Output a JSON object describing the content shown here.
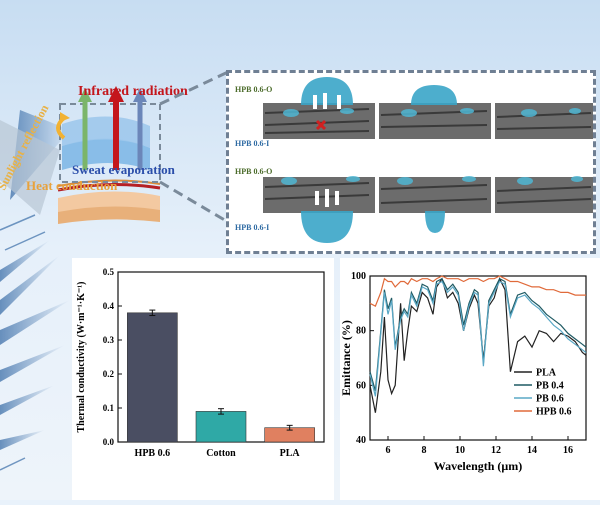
{
  "schematic": {
    "solar_reflection": "Sunlight reflection",
    "infrared_radiation": "Infrared radiation",
    "sweat_evaporation": "Sweat evaporation",
    "heat_conduction": "Heat conduction"
  },
  "micro_panel": {
    "labels": {
      "top_outer": "HPB 0.6-O",
      "top_inner": "HPB 0.6-I",
      "bottom_outer": "HPB 0.6-O",
      "bottom_inner": "HPB 0.6-I"
    }
  },
  "colors": {
    "infrared": "#c4161c",
    "sweat": "#2b4eaa",
    "sun": "#f2b233",
    "heat": "#e8a23c",
    "bar_hpb": "#4a4e62",
    "bar_cotton": "#2fa9a6",
    "bar_pla": "#e08060",
    "pla_line": "#222222",
    "pb04_line": "#1f5a63",
    "pb06_line": "#5aa8c6",
    "hpb06_line": "#e06a3a"
  },
  "chart_data": [
    {
      "type": "bar",
      "title": "",
      "xlabel": "",
      "ylabel": "Thermal conductivity (W·m⁻¹·K⁻¹)",
      "categories": [
        "HPB 0.6",
        "Cotton",
        "PLA"
      ],
      "values": [
        0.38,
        0.09,
        0.042
      ],
      "errors": [
        0.008,
        0.008,
        0.007
      ],
      "ylim": [
        0,
        0.5
      ],
      "yticks": [
        "0.0",
        "0.1",
        "0.2",
        "0.3",
        "0.4",
        "0.5"
      ]
    },
    {
      "type": "line",
      "title": "",
      "xlabel": "Wavelength (μm)",
      "ylabel": "Emittance (%)",
      "xlim": [
        5,
        17
      ],
      "ylim": [
        40,
        100
      ],
      "xticks": [
        "6",
        "8",
        "10",
        "12",
        "14",
        "16"
      ],
      "yticks": [
        "40",
        "60",
        "80",
        "100"
      ],
      "legend_position": "bottom-right",
      "series": [
        {
          "name": "PLA",
          "x": [
            5,
            5.3,
            5.6,
            5.8,
            6.0,
            6.2,
            6.4,
            6.7,
            6.9,
            7.1,
            7.3,
            7.6,
            7.9,
            8.2,
            8.5,
            8.7,
            9.0,
            9.3,
            9.6,
            9.9,
            10.2,
            10.5,
            10.8,
            11.0,
            11.3,
            11.6,
            11.9,
            12.2,
            12.5,
            12.8,
            13.2,
            13.6,
            14.0,
            14.4,
            14.8,
            15.2,
            15.6,
            16.0,
            16.4,
            16.8,
            17
          ],
          "y": [
            60,
            50,
            65,
            85,
            62,
            57,
            60,
            90,
            69,
            80,
            89,
            87,
            94,
            92,
            86,
            96,
            99,
            92,
            94,
            90,
            80,
            88,
            93,
            90,
            69,
            89,
            92,
            99,
            95,
            65,
            76,
            78,
            74,
            80,
            79,
            76,
            79,
            78,
            76,
            72,
            71
          ]
        },
        {
          "name": "PB 0.4",
          "x": [
            5,
            5.3,
            5.6,
            5.8,
            6.0,
            6.2,
            6.4,
            6.7,
            6.9,
            7.1,
            7.3,
            7.6,
            7.9,
            8.2,
            8.5,
            8.7,
            9.0,
            9.3,
            9.6,
            9.9,
            10.2,
            10.5,
            10.8,
            11.0,
            11.3,
            11.6,
            11.9,
            12.2,
            12.5,
            12.8,
            13.2,
            13.6,
            14.0,
            14.4,
            14.8,
            15.2,
            15.6,
            16.0,
            16.4,
            16.8,
            17
          ],
          "y": [
            65,
            58,
            80,
            95,
            88,
            92,
            74,
            85,
            88,
            86,
            94,
            90,
            97,
            96,
            91,
            98,
            99,
            95,
            97,
            94,
            82,
            90,
            95,
            94,
            68,
            91,
            95,
            99,
            98,
            86,
            93,
            94,
            91,
            89,
            86,
            84,
            82,
            79,
            77,
            75,
            74
          ]
        },
        {
          "name": "PB 0.6",
          "x": [
            5,
            5.3,
            5.6,
            5.8,
            6.0,
            6.2,
            6.4,
            6.7,
            6.9,
            7.1,
            7.3,
            7.6,
            7.9,
            8.2,
            8.5,
            8.7,
            9.0,
            9.3,
            9.6,
            9.9,
            10.2,
            10.5,
            10.8,
            11.0,
            11.3,
            11.6,
            11.9,
            12.2,
            12.5,
            12.8,
            13.2,
            13.6,
            14.0,
            14.4,
            14.8,
            15.2,
            15.6,
            16.0,
            16.4,
            16.8,
            17
          ],
          "y": [
            64,
            56,
            79,
            94,
            86,
            91,
            73,
            84,
            87,
            85,
            93,
            89,
            96,
            95,
            90,
            97,
            98,
            94,
            96,
            93,
            80,
            89,
            94,
            93,
            67,
            90,
            94,
            98,
            97,
            85,
            92,
            93,
            90,
            88,
            85,
            82,
            80,
            77,
            75,
            73,
            72
          ]
        },
        {
          "name": "HPB 0.6",
          "x": [
            5,
            5.3,
            5.6,
            5.8,
            6.0,
            6.2,
            6.4,
            6.7,
            6.9,
            7.1,
            7.3,
            7.6,
            7.9,
            8.2,
            8.5,
            8.7,
            9.0,
            9.3,
            9.6,
            9.9,
            10.2,
            10.5,
            10.8,
            11.0,
            11.3,
            11.6,
            11.9,
            12.2,
            12.5,
            12.8,
            13.2,
            13.6,
            14.0,
            14.4,
            14.8,
            15.2,
            15.6,
            16.0,
            16.4,
            16.8,
            17
          ],
          "y": [
            90,
            89,
            94,
            99,
            98,
            98,
            96,
            98,
            98,
            97,
            99,
            98,
            99,
            99,
            98,
            99,
            100,
            99,
            99,
            99,
            98,
            99,
            99,
            99,
            98,
            99,
            99,
            100,
            99,
            98,
            98,
            97,
            96,
            96,
            95,
            95,
            94,
            94,
            93,
            93,
            93
          ]
        }
      ]
    }
  ]
}
